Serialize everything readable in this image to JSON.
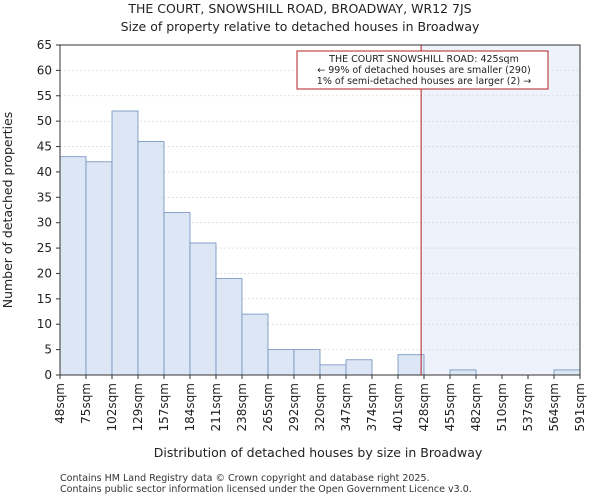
{
  "chart_data": {
    "type": "bar",
    "title_line1": "THE COURT, SNOWSHILL ROAD, BROADWAY, WR12 7JS",
    "title_line2": "Size of property relative to detached houses in Broadway",
    "xlabel": "Distribution of detached houses by size in Broadway",
    "ylabel": "Number of detached properties",
    "ylim": [
      0,
      65
    ],
    "yticks": [
      0,
      5,
      10,
      15,
      20,
      25,
      30,
      35,
      40,
      45,
      50,
      55,
      60,
      65
    ],
    "x_tick_labels": [
      "48sqm",
      "75sqm",
      "102sqm",
      "129sqm",
      "157sqm",
      "184sqm",
      "211sqm",
      "238sqm",
      "265sqm",
      "292sqm",
      "320sqm",
      "347sqm",
      "374sqm",
      "401sqm",
      "428sqm",
      "455sqm",
      "482sqm",
      "510sqm",
      "537sqm",
      "564sqm",
      "591sqm"
    ],
    "bin_edges": [
      48,
      75,
      102,
      129,
      157,
      184,
      211,
      238,
      265,
      292,
      320,
      347,
      374,
      401,
      428,
      455,
      482,
      510,
      537,
      564,
      591
    ],
    "values": [
      43,
      42,
      52,
      46,
      32,
      26,
      19,
      12,
      5,
      5,
      2,
      3,
      0,
      4,
      0,
      1,
      0,
      0,
      0,
      1
    ],
    "bar_color": "#dce6f4",
    "bar_edge_color": "#6f8fbf",
    "highlight_bg_color": "#eef2fb",
    "marker": {
      "value": 425,
      "color": "#b22222",
      "annotation_lines": [
        "THE COURT SNOWSHILL ROAD: 425sqm",
        "← 99% of detached houses are smaller (290)",
        "1% of semi-detached houses are larger (2) →"
      ]
    }
  },
  "footer": {
    "line1": "Contains HM Land Registry data © Crown copyright and database right 2025.",
    "line2": "Contains public sector information licensed under the Open Government Licence v3.0."
  }
}
